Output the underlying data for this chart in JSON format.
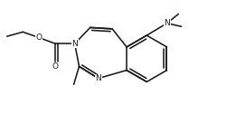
{
  "bg": "#ffffff",
  "lc": "#1a1a1a",
  "lw": 1.15,
  "fs": 6.5,
  "figsize": [
    2.61,
    1.27
  ],
  "dpi": 100,
  "xlim": [
    0.0,
    10.5
  ],
  "ylim": [
    -1.0,
    4.2
  ]
}
